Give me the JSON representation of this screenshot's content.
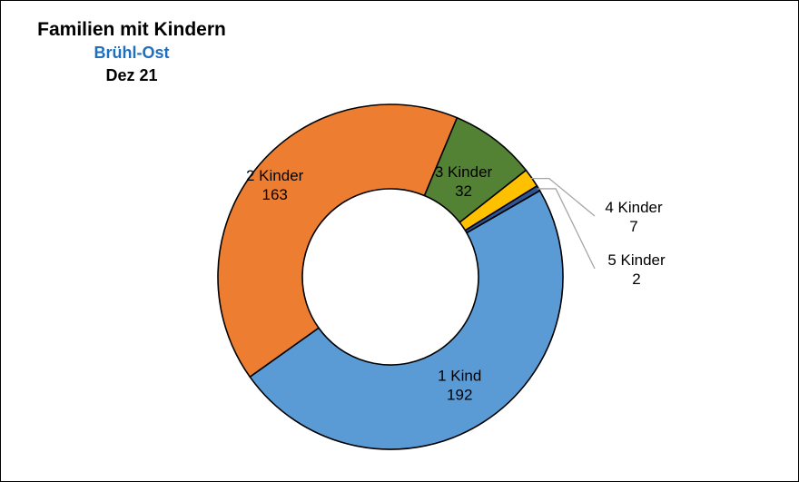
{
  "header": {
    "title": "Familien mit Kindern",
    "subtitle": "Brühl-Ost",
    "period": "Dez 21"
  },
  "colors": {
    "subtitle": "#1f6fbf",
    "border": "#000000"
  },
  "chart_data": {
    "type": "pie",
    "variant": "donut",
    "title": "Familien mit Kindern",
    "subtitle": "Brühl-Ost",
    "period": "Dez 21",
    "start_angle_deg": 60,
    "direction": "clockwise",
    "legend": "none",
    "slices": [
      {
        "label": "1 Kind",
        "value": 192,
        "color": "#5b9bd5"
      },
      {
        "label": "2 Kinder",
        "value": 163,
        "color": "#ed7d31"
      },
      {
        "label": "3 Kinder",
        "value": 32,
        "color": "#548235"
      },
      {
        "label": "4 Kinder",
        "value": 7,
        "color": "#ffc000"
      },
      {
        "label": "5 Kinder",
        "value": 2,
        "color": "#2f5597"
      }
    ]
  }
}
